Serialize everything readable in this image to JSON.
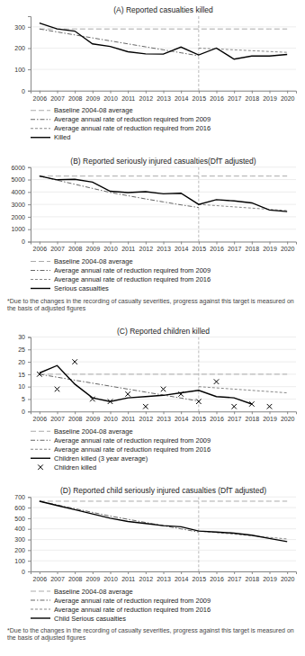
{
  "chart_data": [
    {
      "type": "line",
      "title": "(A) Reported casualties killed",
      "x": [
        2006,
        2007,
        2008,
        2009,
        2010,
        2011,
        2012,
        2013,
        2014,
        2015,
        2016,
        2017,
        2018,
        2019,
        2020
      ],
      "xlim": [
        2005.5,
        2020.5
      ],
      "xticks": [
        2006,
        2007,
        2008,
        2009,
        2010,
        2011,
        2012,
        2013,
        2014,
        2015,
        2016,
        2017,
        2018,
        2019,
        2020
      ],
      "ylim": [
        0,
        350
      ],
      "yticks": [
        0,
        100,
        200,
        300
      ],
      "grid": true,
      "vline": 2015,
      "series": [
        {
          "name": "Baseline 2004-08 average",
          "type": "line",
          "color": "#aaaaaa",
          "line_style": "long-dash",
          "values": [
            290,
            290,
            290,
            290,
            290,
            290,
            290,
            290,
            290,
            290,
            290,
            290,
            290,
            290,
            290
          ]
        },
        {
          "name": "Average annual rate of reduction required from 2009",
          "type": "line",
          "color": "#666666",
          "line_style": "dash-dot",
          "values": [
            290,
            276,
            262,
            248,
            234,
            220,
            206,
            192,
            178,
            164,
            null,
            null,
            null,
            null,
            null
          ]
        },
        {
          "name": "Average annual rate of reduction required from 2016",
          "type": "line",
          "color": "#888888",
          "line_style": "dashed",
          "values": [
            null,
            null,
            null,
            null,
            null,
            null,
            null,
            null,
            null,
            200,
            196,
            192,
            188,
            184,
            180
          ]
        },
        {
          "name": "Killed",
          "type": "line",
          "color": "#000000",
          "line_style": "solid",
          "values": [
            318,
            290,
            280,
            220,
            208,
            183,
            173,
            172,
            205,
            168,
            200,
            148,
            163,
            163,
            170
          ]
        }
      ]
    },
    {
      "type": "line",
      "title": "(B) Reported seriously injured casualties(DfT adjusted)",
      "x": [
        2006,
        2007,
        2008,
        2009,
        2010,
        2011,
        2012,
        2013,
        2014,
        2015,
        2016,
        2017,
        2018,
        2019,
        2020
      ],
      "xlim": [
        2005.5,
        2020.5
      ],
      "xticks": [
        2006,
        2007,
        2008,
        2009,
        2010,
        2011,
        2012,
        2013,
        2014,
        2015,
        2016,
        2017,
        2018,
        2019,
        2020
      ],
      "ylim": [
        0,
        6000
      ],
      "yticks": [
        0,
        1000,
        2000,
        3000,
        4000,
        5000,
        6000
      ],
      "grid": true,
      "vline": 2015,
      "annotations": [
        "*Due to the changes in the recording of casualty severities, progress against this target is measured on the basis of adjusted figures"
      ],
      "series": [
        {
          "name": "Baseline 2004-08 average",
          "type": "line",
          "color": "#aaaaaa",
          "line_style": "long-dash",
          "values": [
            5280,
            5280,
            5280,
            5280,
            5280,
            5280,
            5280,
            5280,
            5280,
            5280,
            5280,
            5280,
            5280,
            5280,
            5280
          ]
        },
        {
          "name": "Average annual rate of reduction required from 2009",
          "type": "line",
          "color": "#666666",
          "line_style": "dash-dot",
          "values": [
            5280,
            4950,
            4620,
            4290,
            3960,
            3700,
            3440,
            3200,
            2960,
            2750,
            null,
            null,
            null,
            null,
            null
          ]
        },
        {
          "name": "Average annual rate of reduction required from 2016",
          "type": "line",
          "color": "#888888",
          "line_style": "dashed",
          "values": [
            null,
            null,
            null,
            null,
            null,
            null,
            null,
            null,
            null,
            3000,
            2900,
            2800,
            2700,
            2600,
            2500
          ]
        },
        {
          "name": "Serious casualties",
          "type": "line",
          "color": "#000000",
          "line_style": "solid",
          "values": [
            5280,
            4980,
            5020,
            4800,
            4060,
            3950,
            4020,
            3850,
            3900,
            3000,
            3380,
            3280,
            3120,
            2550,
            2420
          ]
        }
      ]
    },
    {
      "type": "line",
      "title": "(C) Reported children killed",
      "x": [
        2006,
        2007,
        2008,
        2009,
        2010,
        2011,
        2012,
        2013,
        2014,
        2015,
        2016,
        2017,
        2018,
        2019,
        2020
      ],
      "xlim": [
        2005.5,
        2020.5
      ],
      "xticks": [
        2006,
        2007,
        2008,
        2009,
        2010,
        2011,
        2012,
        2013,
        2014,
        2015,
        2016,
        2017,
        2018,
        2019,
        2020
      ],
      "ylim": [
        0,
        30
      ],
      "yticks": [
        0,
        5,
        10,
        15,
        20,
        25,
        30
      ],
      "grid": true,
      "vline": 2015,
      "series": [
        {
          "name": "Baseline 2004-08 average",
          "type": "line",
          "color": "#aaaaaa",
          "line_style": "long-dash",
          "values": [
            15,
            15,
            15,
            15,
            15,
            15,
            15,
            15,
            15,
            15,
            15,
            15,
            15,
            15,
            15
          ]
        },
        {
          "name": "Average annual rate of reduction required from 2009",
          "type": "line",
          "color": "#666666",
          "line_style": "dash-dot",
          "values": [
            15,
            13.8,
            12.6,
            11.4,
            10.2,
            9.0,
            7.8,
            6.6,
            5.4,
            4.2,
            null,
            null,
            null,
            null,
            null
          ]
        },
        {
          "name": "Average annual rate of reduction required from 2016",
          "type": "line",
          "color": "#888888",
          "line_style": "dashed",
          "values": [
            null,
            null,
            null,
            null,
            null,
            null,
            null,
            null,
            null,
            10,
            9.5,
            9.0,
            8.5,
            8.0,
            7.5
          ]
        },
        {
          "name": "Children killed (3 year average)",
          "type": "line",
          "color": "#000000",
          "line_style": "solid",
          "values": [
            15.5,
            18.5,
            11.0,
            5.5,
            4.0,
            5.5,
            6.0,
            6.5,
            7.5,
            8.5,
            6.0,
            5.5,
            3.0,
            null,
            null
          ]
        },
        {
          "name": "Children killed",
          "type": "scatter",
          "color": "#000000",
          "marker": "x",
          "values": [
            15,
            9,
            20,
            5,
            4,
            7,
            2,
            9,
            7,
            4,
            12,
            2,
            3,
            2,
            null
          ]
        }
      ]
    },
    {
      "type": "line",
      "title": "(D) Reported child seriously injured casualties (DfT adjusted)",
      "x": [
        2006,
        2007,
        2008,
        2009,
        2010,
        2011,
        2012,
        2013,
        2014,
        2015,
        2016,
        2017,
        2018,
        2019,
        2020
      ],
      "xlim": [
        2005.5,
        2020.5
      ],
      "xticks": [
        2006,
        2007,
        2008,
        2009,
        2010,
        2011,
        2012,
        2013,
        2014,
        2015,
        2016,
        2017,
        2018,
        2019,
        2020
      ],
      "ylim": [
        0,
        700
      ],
      "yticks": [
        0,
        100,
        200,
        300,
        400,
        500,
        600,
        700
      ],
      "grid": true,
      "vline": 2015,
      "annotations": [
        "*Due to the changes in the recording of casualty severities, progress against this target is measured on the basis of adjusted figures"
      ],
      "series": [
        {
          "name": "Baseline 2004-08 average",
          "type": "line",
          "color": "#aaaaaa",
          "line_style": "long-dash",
          "values": [
            660,
            660,
            660,
            660,
            660,
            660,
            660,
            660,
            660,
            660,
            660,
            660,
            660,
            660,
            660
          ]
        },
        {
          "name": "Average annual rate of reduction required from 2009",
          "type": "line",
          "color": "#666666",
          "line_style": "dash-dot",
          "values": [
            660,
            625,
            590,
            555,
            520,
            490,
            460,
            430,
            400,
            370,
            null,
            null,
            null,
            null,
            null
          ]
        },
        {
          "name": "Average annual rate of reduction required from 2016",
          "type": "line",
          "color": "#888888",
          "line_style": "dashed",
          "values": [
            null,
            null,
            null,
            null,
            null,
            null,
            null,
            null,
            null,
            380,
            365,
            350,
            335,
            320,
            305
          ]
        },
        {
          "name": "Child Serious casualties",
          "type": "line",
          "color": "#000000",
          "line_style": "solid",
          "values": [
            660,
            620,
            580,
            540,
            500,
            470,
            450,
            430,
            420,
            380,
            370,
            360,
            340,
            310,
            280
          ]
        }
      ]
    }
  ]
}
